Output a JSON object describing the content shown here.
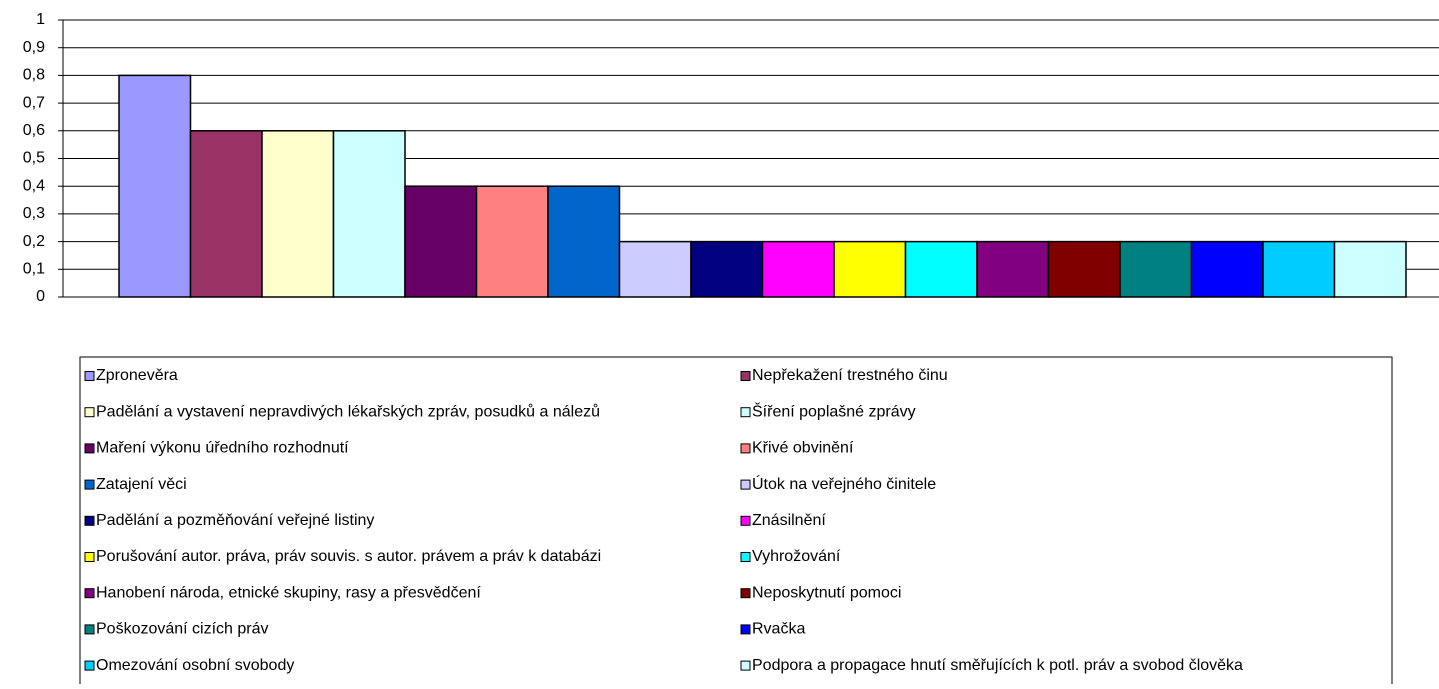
{
  "chart_data": {
    "type": "bar",
    "ylim": [
      0,
      1
    ],
    "yticks": [
      0,
      {
        "value": 0.1,
        "label": "0,1"
      },
      {
        "value": 0.2,
        "label": "0,2"
      },
      {
        "value": 0.3,
        "label": "0,3"
      },
      {
        "value": 0.4,
        "label": "0,4"
      },
      {
        "value": 0.5,
        "label": "0,5"
      },
      {
        "value": 0.6,
        "label": "0,6"
      },
      {
        "value": 0.7,
        "label": "0,7"
      },
      {
        "value": 0.8,
        "label": "0,8"
      },
      {
        "value": 0.9,
        "label": "0,9"
      },
      1
    ],
    "grid": true,
    "legend": "bottom",
    "series": [
      {
        "name": "Zpronevěra",
        "color": "#9999FF",
        "values": [
          0.8
        ]
      },
      {
        "name": "Nepřekažení trestného činu",
        "color": "#993366",
        "values": [
          0.6
        ]
      },
      {
        "name": "Padělání a vystavení nepravdivých lékařských zpráv, posudků a nálezů",
        "color": "#FFFFCC",
        "values": [
          0.6
        ]
      },
      {
        "name": "Šíření poplašné zprávy",
        "color": "#CCFFFF",
        "values": [
          0.6
        ]
      },
      {
        "name": "Maření výkonu úředního rozhodnutí",
        "color": "#660066",
        "values": [
          0.4
        ]
      },
      {
        "name": "Křivé obvinění",
        "color": "#FF8080",
        "values": [
          0.4
        ]
      },
      {
        "name": "Zatajení věci",
        "color": "#0066CC",
        "values": [
          0.4
        ]
      },
      {
        "name": "Útok na veřejného činitele",
        "color": "#CCCCFF",
        "values": [
          0.2
        ]
      },
      {
        "name": "Padělání a pozměňování veřejné listiny",
        "color": "#000080",
        "values": [
          0.2
        ]
      },
      {
        "name": "Znásilnění",
        "color": "#FF00FF",
        "values": [
          0.2
        ]
      },
      {
        "name": "Porušování autor. práva, práv souvis. s autor. právem a práv k databázi",
        "color": "#FFFF00",
        "values": [
          0.2
        ]
      },
      {
        "name": "Vyhrožování",
        "color": "#00FFFF",
        "values": [
          0.2
        ]
      },
      {
        "name": "Hanobení národa, etnické skupiny, rasy a přesvědčení",
        "color": "#800080",
        "values": [
          0.2
        ]
      },
      {
        "name": "Neposkytnutí pomoci",
        "color": "#800000",
        "values": [
          0.2
        ]
      },
      {
        "name": "Poškozování cizích práv",
        "color": "#008080",
        "values": [
          0.2
        ]
      },
      {
        "name": "Rvačka",
        "color": "#0000FF",
        "values": [
          0.2
        ]
      },
      {
        "name": "Omezování osobní svobody",
        "color": "#00CCFF",
        "values": [
          0.2
        ]
      },
      {
        "name": "Podpora a propagace hnutí směřujících k potl. práv a svobod člověka",
        "color": "#CCFFFF",
        "values": [
          0.2
        ]
      }
    ]
  }
}
